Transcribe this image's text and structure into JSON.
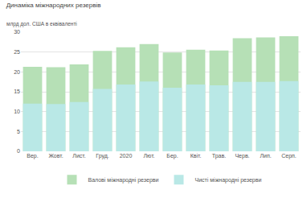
{
  "chart_data": {
    "type": "bar",
    "title": "Динаміка міжнародних резервів",
    "ylabel": "млрд дол. США в еквіваленті",
    "categories": [
      "Вер.",
      "Жовт.",
      "Лист.",
      "Груд.",
      "2020",
      "Лют.",
      "Бер.",
      "Квіт.",
      "Трав.",
      "Черв.",
      "Лип.",
      "Серп."
    ],
    "series": [
      {
        "name": "Валові міжнародні резерви",
        "color": "#b6e0b6",
        "values": [
          21.3,
          21.2,
          21.9,
          25.3,
          26.2,
          27.0,
          24.9,
          25.6,
          25.4,
          28.5,
          28.7,
          29.0
        ]
      },
      {
        "name": "Чисті міжнародні резерви",
        "color": "#b9e8e6",
        "values": [
          12.0,
          11.9,
          12.4,
          15.7,
          16.8,
          17.6,
          16.0,
          16.8,
          16.6,
          17.5,
          17.5,
          17.7
        ]
      }
    ],
    "stacked": false,
    "ylim": [
      0,
      30
    ],
    "yticks": [
      0,
      5,
      10,
      15,
      20,
      25,
      30
    ],
    "grid": true,
    "legend": "bottom"
  }
}
